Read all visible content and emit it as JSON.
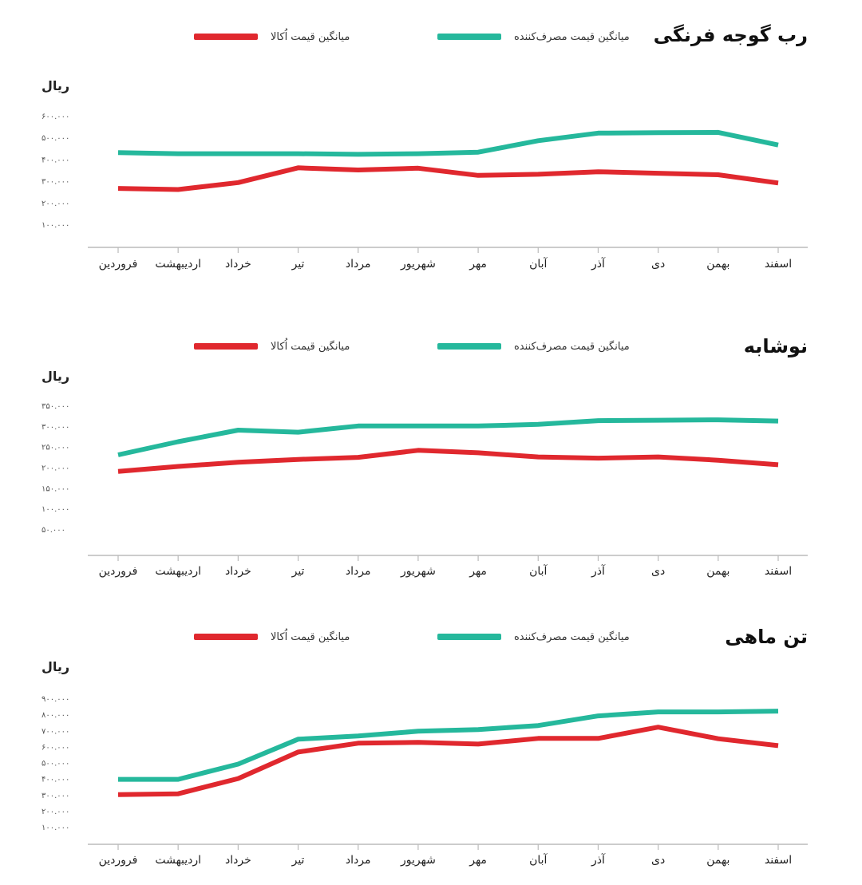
{
  "legend": {
    "factory_label": "میانگین قیمت اُکالا",
    "consumer_label": "میانگین قیمت مصرف‌کننده"
  },
  "colors": {
    "factory": "#e0282e",
    "consumer": "#25b89c",
    "axis": "#bbbbbb"
  },
  "chart_data": [
    {
      "type": "line",
      "title": "رب گوجه فرنگی",
      "ylabel": "ریال",
      "categories": [
        "فروردین",
        "اردیبهشت",
        "خرداد",
        "تیر",
        "مرداد",
        "شهریور",
        "مهر",
        "آبان",
        "آذر",
        "دی",
        "بهمن",
        "اسفند"
      ],
      "yticks": [
        100000,
        200000,
        300000,
        400000,
        500000,
        600000
      ],
      "ytick_labels": [
        "۱۰۰.۰۰۰",
        "۲۰۰.۰۰۰",
        "۳۰۰.۰۰۰",
        "۴۰۰.۰۰۰",
        "۵۰۰.۰۰۰",
        "۶۰۰.۰۰۰"
      ],
      "ylim": [
        0,
        620000
      ],
      "series": [
        {
          "key": "consumer",
          "values": [
            430000,
            425000,
            425000,
            425000,
            422000,
            425000,
            432000,
            485000,
            520000,
            522000,
            523000,
            465000
          ]
        },
        {
          "key": "factory",
          "values": [
            265000,
            260000,
            292000,
            360000,
            350000,
            358000,
            325000,
            330000,
            342000,
            335000,
            328000,
            290000
          ]
        }
      ]
    },
    {
      "type": "line",
      "title": "نوشابه",
      "ylabel": "ریال",
      "categories": [
        "فروردین",
        "اردیبهشت",
        "خرداد",
        "تیر",
        "مرداد",
        "شهریور",
        "مهر",
        "آبان",
        "آذر",
        "دی",
        "بهمن",
        "اسفند"
      ],
      "yticks": [
        50000,
        100000,
        150000,
        200000,
        250000,
        300000,
        350000
      ],
      "ytick_labels": [
        "۵۰.۰۰۰",
        "۱۰۰.۰۰۰",
        "۱۵۰.۰۰۰",
        "۲۰۰.۰۰۰",
        "۲۵۰.۰۰۰",
        "۳۰۰.۰۰۰",
        "۳۵۰.۰۰۰"
      ],
      "ylim": [
        0,
        360000
      ],
      "series": [
        {
          "key": "consumer",
          "values": [
            230000,
            262000,
            290000,
            285000,
            300000,
            300000,
            300000,
            304000,
            313000,
            314000,
            315000,
            312000
          ]
        },
        {
          "key": "factory",
          "values": [
            190000,
            202000,
            212000,
            219000,
            224000,
            241000,
            235000,
            225000,
            222000,
            225000,
            217000,
            206000
          ]
        }
      ]
    },
    {
      "type": "line",
      "title": "تن ماهی",
      "ylabel": "ریال",
      "categories": [
        "فروردین",
        "اردیبهشت",
        "خرداد",
        "تیر",
        "مرداد",
        "شهریور",
        "مهر",
        "آبان",
        "آذر",
        "دی",
        "بهمن",
        "اسفند"
      ],
      "yticks": [
        100000,
        200000,
        300000,
        400000,
        500000,
        600000,
        700000,
        800000,
        900000
      ],
      "ytick_labels": [
        "۱۰۰.۰۰۰",
        "۲۰۰.۰۰۰",
        "۳۰۰.۰۰۰",
        "۴۰۰.۰۰۰",
        "۵۰۰.۰۰۰",
        "۶۰۰.۰۰۰",
        "۷۰۰.۰۰۰",
        "۸۰۰.۰۰۰",
        "۹۰۰.۰۰۰"
      ],
      "ylim": [
        0,
        920000
      ],
      "series": [
        {
          "key": "consumer",
          "values": [
            395000,
            395000,
            490000,
            645000,
            665000,
            695000,
            705000,
            730000,
            790000,
            815000,
            815000,
            820000
          ]
        },
        {
          "key": "factory",
          "values": [
            300000,
            305000,
            400000,
            565000,
            620000,
            625000,
            615000,
            650000,
            650000,
            720000,
            648000,
            605000
          ]
        }
      ]
    }
  ]
}
